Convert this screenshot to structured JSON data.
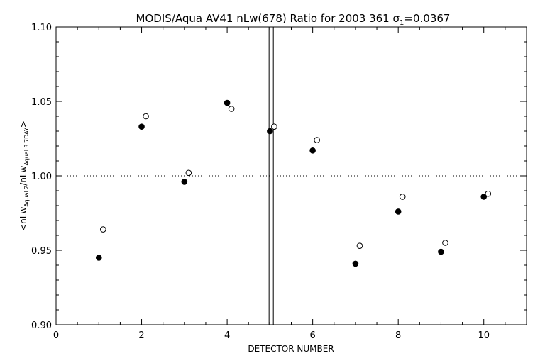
{
  "chart_data": {
    "type": "scatter",
    "title": "MODIS/Aqua AV41 nLw(678) Ratio for 2003 361 σ1=0.0367",
    "title_parts": {
      "main": "MODIS/Aqua AV41 nLw(678) Ratio for 2003 361 σ",
      "sub": "1",
      "tail": "=0.0367"
    },
    "xlabel": "DETECTOR NUMBER",
    "ylabel": "<nLwAquaL2/nLwAquaL3:7DAY>",
    "ylabel_parts": {
      "a": "<nLw",
      "a_sub": "AquaL2",
      "b": "/nLw",
      "b_sub": "AquaL3:7DAY",
      "c": ">"
    },
    "xlim": [
      0,
      11
    ],
    "ylim": [
      0.9,
      1.1
    ],
    "x_ticks": [
      "0",
      "2",
      "4",
      "6",
      "8",
      "10"
    ],
    "y_ticks": [
      "0.90",
      "0.95",
      "1.00",
      "1.05",
      "1.10"
    ],
    "reference_line": {
      "y": 1.0,
      "style": "dotted"
    },
    "vertical_lines": [
      4.98,
      5.08
    ],
    "series": [
      {
        "marker": "filled-circle",
        "x": [
          1,
          2,
          3,
          4,
          5,
          6,
          7,
          8,
          9,
          10
        ],
        "y": [
          0.945,
          1.033,
          0.996,
          1.049,
          1.03,
          1.017,
          0.941,
          0.976,
          0.949,
          0.986
        ]
      },
      {
        "marker": "open-circle",
        "x": [
          1.1,
          2.1,
          3.1,
          4.1,
          5.1,
          6.1,
          7.1,
          8.1,
          9.1,
          10.1
        ],
        "y": [
          0.964,
          1.04,
          1.002,
          1.045,
          1.033,
          1.024,
          0.953,
          0.986,
          0.955,
          0.988
        ]
      }
    ]
  }
}
